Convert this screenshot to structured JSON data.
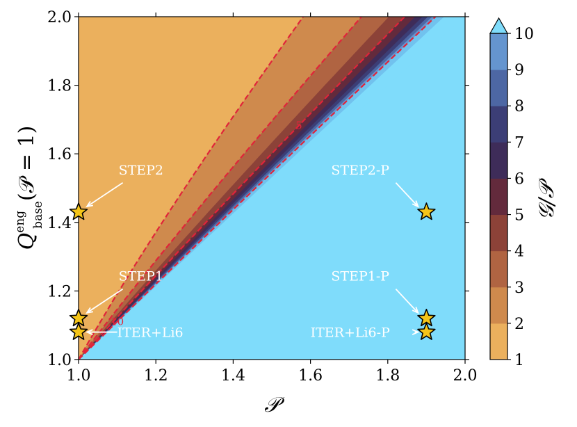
{
  "chart_data": {
    "type": "contourf",
    "title": "",
    "xlabel": "𝒫",
    "ylabel_main": "Q",
    "ylabel_sup": "eng",
    "ylabel_sub": "base",
    "ylabel_tail": "(𝒫 = 1)",
    "xlim": [
      1.0,
      2.0
    ],
    "ylim": [
      1.0,
      2.0
    ],
    "x_ticks": [
      1.0,
      1.2,
      1.4,
      1.6,
      1.8,
      2.0
    ],
    "x_tick_labels": [
      "1.0",
      "1.2",
      "1.4",
      "1.6",
      "1.8",
      "2.0"
    ],
    "y_ticks": [
      1.0,
      1.2,
      1.4,
      1.6,
      1.8,
      2.0
    ],
    "y_tick_labels": [
      "1.0",
      "1.2",
      "1.4",
      "1.6",
      "1.8",
      "2.0"
    ],
    "colorbar": {
      "label": "𝒢/𝒫",
      "levels": [
        1,
        2,
        3,
        4,
        5,
        6,
        7,
        8,
        9,
        10
      ],
      "tick_labels": [
        "1",
        "2",
        "3",
        "4",
        "5",
        "6",
        "7",
        "8",
        "9",
        "10"
      ],
      "extend": "max",
      "colors": [
        "#ebb05d",
        "#cf8a4d",
        "#b06442",
        "#8c4238",
        "#632a3c",
        "#3e2c59",
        "#3c3e76",
        "#4d67a4",
        "#6595cf",
        "#71c2ee",
        "#7fdcfb"
      ]
    },
    "function": "Q = sqrt(((G/P)/(G/P - 1)) * (P^2 - 1) + 1) for G/P > 1",
    "dashed_contours": [
      {
        "level": 2,
        "label": ""
      },
      {
        "level": 3,
        "label": ""
      },
      {
        "level": 5,
        "label": "5"
      },
      {
        "level": 10,
        "label": "10"
      }
    ],
    "points": [
      {
        "name": "STEP2",
        "x": 1.0,
        "y": 1.43,
        "label_x": 1.1,
        "label_y": 1.54
      },
      {
        "name": "STEP2-P",
        "x": 1.9,
        "y": 1.43,
        "label_x": 1.65,
        "label_y": 1.54
      },
      {
        "name": "STEP1",
        "x": 1.0,
        "y": 1.12,
        "label_x": 1.1,
        "label_y": 1.23
      },
      {
        "name": "STEP1-P",
        "x": 1.9,
        "y": 1.12,
        "label_x": 1.65,
        "label_y": 1.23
      },
      {
        "name": "ITER+Li6",
        "x": 1.0,
        "y": 1.08,
        "label_x": 1.1,
        "label_y": 1.08
      },
      {
        "name": "ITER+Li6-P",
        "x": 1.9,
        "y": 1.08,
        "label_x": 1.6,
        "label_y": 1.08
      }
    ],
    "star_fill": "#f5c518",
    "contour_line_color": "#e0243a"
  }
}
